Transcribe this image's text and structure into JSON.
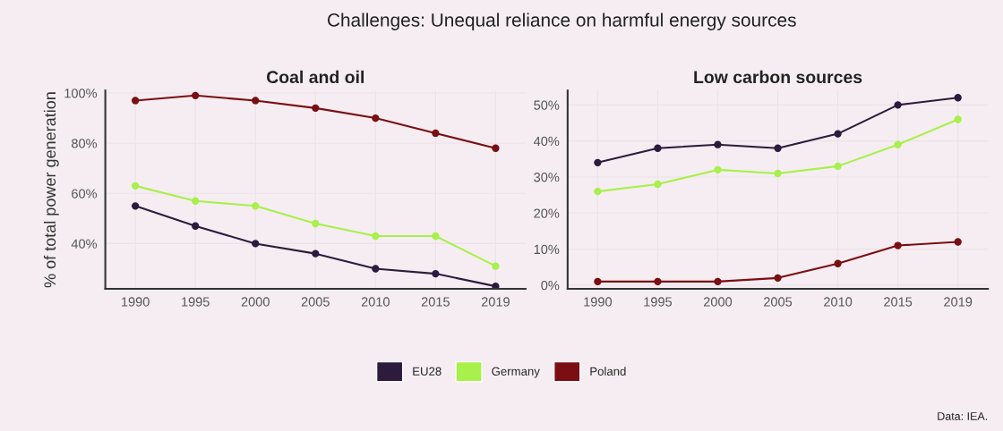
{
  "chart_data": [
    {
      "type": "line",
      "title": "Coal and oil",
      "ylabel": "% of total power generation",
      "annotations": [
        "Challenges: Unequal reliance on harmful energy sources"
      ],
      "categories": [
        "1990",
        "1995",
        "2000",
        "2005",
        "2010",
        "2015",
        "2019"
      ],
      "series": [
        {
          "name": "EU28",
          "color": "#2d1b3d",
          "values": [
            55,
            47,
            40,
            36,
            30,
            28,
            23
          ]
        },
        {
          "name": "Germany",
          "color": "#a8f04a",
          "values": [
            63,
            57,
            55,
            48,
            43,
            43,
            31
          ]
        },
        {
          "name": "Poland",
          "color": "#7a0e12",
          "values": [
            97,
            99,
            97,
            94,
            90,
            84,
            78
          ]
        }
      ],
      "ylim": [
        22,
        101
      ],
      "yticks": [
        {
          "value": 40,
          "label": "40%"
        },
        {
          "value": 60,
          "label": "60%"
        },
        {
          "value": 80,
          "label": "80%"
        },
        {
          "value": 100,
          "label": "100%"
        }
      ],
      "grid": true,
      "legend": "bottom",
      "marker": "circle",
      "line_style": "solid"
    },
    {
      "type": "line",
      "title": "Low carbon sources",
      "annotations": [
        "Data: IEA."
      ],
      "categories": [
        "1990",
        "1995",
        "2000",
        "2005",
        "2010",
        "2015",
        "2019"
      ],
      "series": [
        {
          "name": "EU28",
          "color": "#2d1b3d",
          "values": [
            34,
            38,
            39,
            38,
            42,
            50,
            52
          ]
        },
        {
          "name": "Germany",
          "color": "#a8f04a",
          "values": [
            26,
            28,
            32,
            31,
            33,
            39,
            46
          ]
        },
        {
          "name": "Poland",
          "color": "#7a0e12",
          "values": [
            1,
            1,
            1,
            2,
            6,
            11,
            12
          ]
        }
      ],
      "ylim": [
        -1,
        54
      ],
      "yticks": [
        {
          "value": 0,
          "label": "0%"
        },
        {
          "value": 10,
          "label": "10%"
        },
        {
          "value": 20,
          "label": "20%"
        },
        {
          "value": 30,
          "label": "30%"
        },
        {
          "value": 40,
          "label": "40%"
        },
        {
          "value": 50,
          "label": "50%"
        }
      ],
      "grid": true,
      "marker": "circle",
      "line_style": "solid"
    }
  ]
}
